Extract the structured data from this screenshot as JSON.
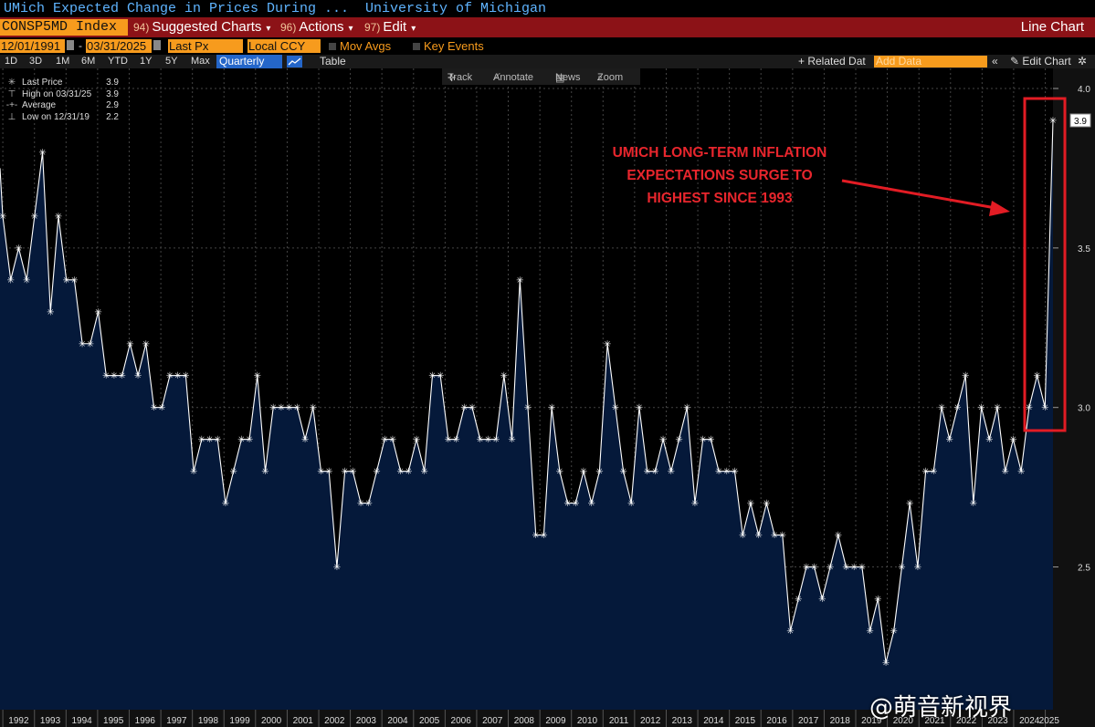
{
  "header": {
    "security_title": "UMich Expected Change in Prices During ...",
    "source": "University of Michigan"
  },
  "toolbar": {
    "ticker": "CONSP5MD Index",
    "suggested": {
      "num": "94)",
      "label": "Suggested Charts"
    },
    "actions": {
      "num": "96)",
      "label": "Actions"
    },
    "edit": {
      "num": "97)",
      "label": "Edit"
    },
    "chart_type": "Line Chart"
  },
  "controls": {
    "start_date": "12/01/1991",
    "end_date": "03/31/2025",
    "price_field": "Last Px",
    "currency": "Local CCY",
    "mov_avgs": "Mov Avgs",
    "key_events": "Key Events"
  },
  "range_bar": {
    "ranges": [
      "1D",
      "3D",
      "1M",
      "6M",
      "YTD",
      "1Y",
      "5Y",
      "Max"
    ],
    "frequency": "Quarterly",
    "table": "Table",
    "related": "+ Related Dat",
    "add_data": "Add Data",
    "edit_chart": "Edit Chart"
  },
  "chart_tools": [
    "Track",
    "Annotate",
    "News",
    "Zoom"
  ],
  "legend": [
    {
      "label": "Last Price",
      "value": "3.9"
    },
    {
      "label": "High on 03/31/25",
      "value": "3.9"
    },
    {
      "label": "Average",
      "value": "2.9"
    },
    {
      "label": "Low on 12/31/19",
      "value": "2.2"
    }
  ],
  "annotation": [
    "UMICH LONG-TERM INFLATION",
    "EXPECTATIONS SURGE TO",
    "HIGHEST SINCE 1993"
  ],
  "watermark": "@萌音新视界",
  "colors": {
    "area_fill": "#05193a",
    "line": "#ffffff",
    "accent_red": "#e8262d",
    "bloomberg_orange": "#f79b1d",
    "bar_red": "#8c1217"
  },
  "chart_data": {
    "type": "area",
    "frequency": "quarterly",
    "ylim": [
      2.1,
      4.0
    ],
    "yticks": [
      2.5,
      3.0,
      3.5,
      4.0
    ],
    "last_value_label": "3.9",
    "x_labels": [
      "1992",
      "1993",
      "1994",
      "1995",
      "1996",
      "1997",
      "1998",
      "1999",
      "2000",
      "2001",
      "2002",
      "2003",
      "2004",
      "2005",
      "2006",
      "2007",
      "2008",
      "2009",
      "2010",
      "2011",
      "2012",
      "2013",
      "2014",
      "2015",
      "2016",
      "2017",
      "2018",
      "2019",
      "2020",
      "2021",
      "2022",
      "2023",
      "2024",
      "2025"
    ],
    "start": "1991-12-31",
    "end": "2025-03-31",
    "values": [
      3.6,
      3.4,
      3.5,
      3.4,
      3.6,
      3.8,
      3.3,
      3.6,
      3.4,
      3.4,
      3.2,
      3.2,
      3.3,
      3.1,
      3.1,
      3.1,
      3.2,
      3.1,
      3.2,
      3.0,
      3.0,
      3.1,
      3.1,
      3.1,
      2.8,
      2.9,
      2.9,
      2.9,
      2.7,
      2.8,
      2.9,
      2.9,
      3.1,
      2.8,
      3.0,
      3.0,
      3.0,
      3.0,
      2.9,
      3.0,
      2.8,
      2.8,
      2.5,
      2.8,
      2.8,
      2.7,
      2.7,
      2.8,
      2.9,
      2.9,
      2.8,
      2.8,
      2.9,
      2.8,
      3.1,
      3.1,
      2.9,
      2.9,
      3.0,
      3.0,
      2.9,
      2.9,
      2.9,
      3.1,
      2.9,
      3.4,
      3.0,
      2.6,
      2.6,
      3.0,
      2.8,
      2.7,
      2.7,
      2.8,
      2.7,
      2.8,
      3.2,
      3.0,
      2.8,
      2.7,
      3.0,
      2.8,
      2.8,
      2.9,
      2.8,
      2.9,
      3.0,
      2.7,
      2.9,
      2.9,
      2.8,
      2.8,
      2.8,
      2.6,
      2.7,
      2.6,
      2.7,
      2.6,
      2.6,
      2.3,
      2.4,
      2.5,
      2.5,
      2.4,
      2.5,
      2.6,
      2.5,
      2.5,
      2.5,
      2.3,
      2.4,
      2.2,
      2.3,
      2.5,
      2.7,
      2.5,
      2.8,
      2.8,
      3.0,
      2.9,
      3.0,
      3.1,
      2.7,
      3.0,
      2.9,
      3.0,
      2.8,
      2.9,
      2.8,
      3.0,
      3.1,
      3.0,
      3.9
    ]
  }
}
